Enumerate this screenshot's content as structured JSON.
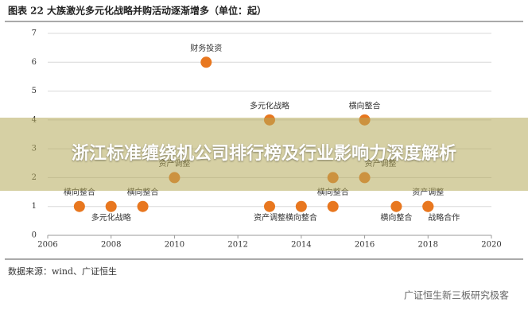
{
  "header": {
    "title": "图表 22 大族激光多元化战略并购活动逐渐增多（单位：起）"
  },
  "chart_data": {
    "type": "scatter",
    "x": [
      2007,
      2008,
      2009,
      2010,
      2011,
      2013,
      2013,
      2014,
      2015,
      2015,
      2016,
      2016,
      2017,
      2018,
      2018
    ],
    "values": [
      1,
      1,
      1,
      2,
      6,
      4,
      1,
      1,
      1,
      2,
      4,
      2,
      1,
      1,
      1
    ],
    "point_labels": [
      "横向整合",
      "多元化战略",
      "横向整合",
      "资产调整",
      "财务投资",
      "多元化战略",
      "资产调整",
      "横向整合",
      "横向整合",
      null,
      "横向整合",
      "资产调整",
      "横向整合",
      "资产调整",
      "战略合作"
    ],
    "color": "#e8771f",
    "xlim": [
      2006,
      2020
    ],
    "ylim": [
      0,
      7
    ],
    "xticks": [
      2006,
      2008,
      2010,
      2012,
      2014,
      2016,
      2018,
      2020
    ],
    "yticks": [
      0,
      1,
      2,
      3,
      4,
      5,
      6,
      7
    ],
    "grid": true
  },
  "source": "数据来源：wind、广证恒生",
  "watermark": "广证恒生新三板研究极客",
  "banner": "浙江标准缠绕机公司排行榜及行业影响力深度解析"
}
